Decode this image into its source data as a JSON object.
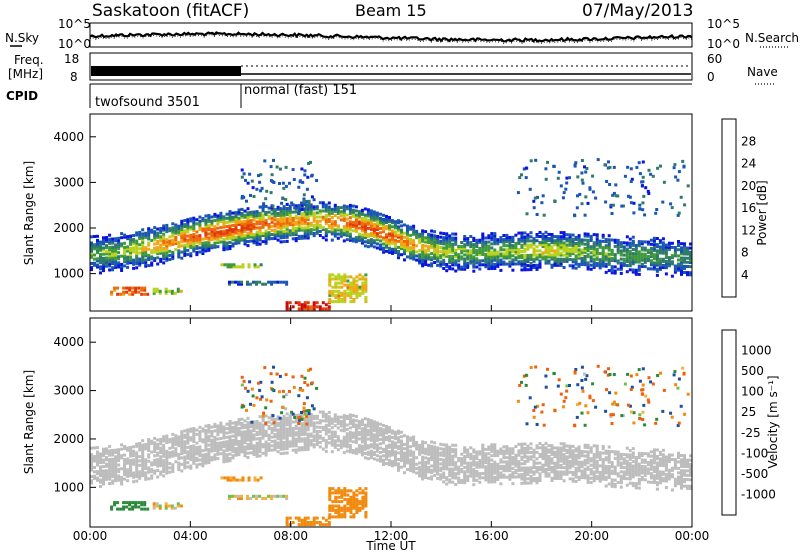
{
  "header": {
    "station": "Saskatoon (fitACF)",
    "beam": "Beam 15",
    "date": "07/May/2013"
  },
  "noise_panel": {
    "left_label": "N.Sky",
    "left_ticks": [
      "10^5",
      "10^0"
    ],
    "right_label": "N.Search",
    "right_ticks": [
      "10^5",
      "10^0"
    ]
  },
  "freq_panel": {
    "left_label_line1": "Freq.",
    "left_label_line2": "[MHz]",
    "left_ticks": [
      "18",
      "8"
    ],
    "right_label": "Nave",
    "right_ticks": [
      "60",
      "0"
    ]
  },
  "cpid_panel": {
    "label": "CPID",
    "segments": [
      {
        "name": "twofsound 3501",
        "start": 0,
        "end": 6
      },
      {
        "name": "normal (fast) 151",
        "start": 6,
        "end": 24
      }
    ]
  },
  "colors": {
    "power": [
      "#0a14e0",
      "#1a56b4",
      "#2f7a6a",
      "#3f9a3c",
      "#b8d21e",
      "#f2a515",
      "#ee6a0a",
      "#e03a0a",
      "#cc0a0a"
    ],
    "velocity": [
      "#e01010",
      "#ee6010",
      "#f28a10",
      "#f5b040",
      "#bdbdbd",
      "#70c050",
      "#2a8a3a",
      "#1c4fa0",
      "#12249a"
    ]
  },
  "chart_data": [
    {
      "type": "heatmap",
      "ylabel": "Slant Range [km]",
      "colorbar_label": "Power [dB]",
      "colorbar_ticks": [
        "28",
        "24",
        "20",
        "16",
        "12",
        "8",
        "4"
      ],
      "colorbar_range": [
        0,
        32
      ],
      "ylim": [
        180,
        4500
      ],
      "yticks": [
        "1000",
        "2000",
        "3000",
        "4000"
      ],
      "xlim": [
        0,
        24
      ],
      "series": [
        {
          "x": [
            0,
            1,
            2,
            3,
            4,
            5,
            6,
            7,
            8,
            9,
            10,
            11,
            12,
            13,
            14,
            15,
            16,
            17,
            18,
            19,
            20,
            21,
            22,
            23,
            24
          ],
          "values": [
            1450,
            1500,
            1600,
            1700,
            1850,
            1950,
            2050,
            2120,
            2170,
            2200,
            2180,
            2050,
            1850,
            1650,
            1520,
            1500,
            1520,
            1530,
            1550,
            1540,
            1500,
            1460,
            1430,
            1400,
            1380
          ]
        }
      ],
      "peak_power": [
        12,
        14,
        18,
        22,
        24,
        26,
        26,
        24,
        22,
        20,
        24,
        26,
        24,
        20,
        16,
        14,
        14,
        16,
        18,
        16,
        14,
        12,
        12,
        10,
        10
      ]
    },
    {
      "type": "heatmap",
      "ylabel": "Slant Range [km]",
      "colorbar_label": "Velocity [m s⁻¹]",
      "colorbar_ticks": [
        "1000",
        "500",
        "100",
        "25",
        "-25",
        "-100",
        "-500",
        "-1000"
      ],
      "colorbar_range": [
        -1000,
        1000
      ],
      "ylim": [
        180,
        4500
      ],
      "yticks": [
        "1000",
        "2000",
        "3000",
        "4000"
      ],
      "xlim": [
        0,
        24
      ],
      "xticks": [
        "00:00",
        "04:00",
        "08:00",
        "12:00",
        "16:00",
        "20:00",
        "00:00"
      ],
      "xlabel": "Time UT"
    }
  ]
}
